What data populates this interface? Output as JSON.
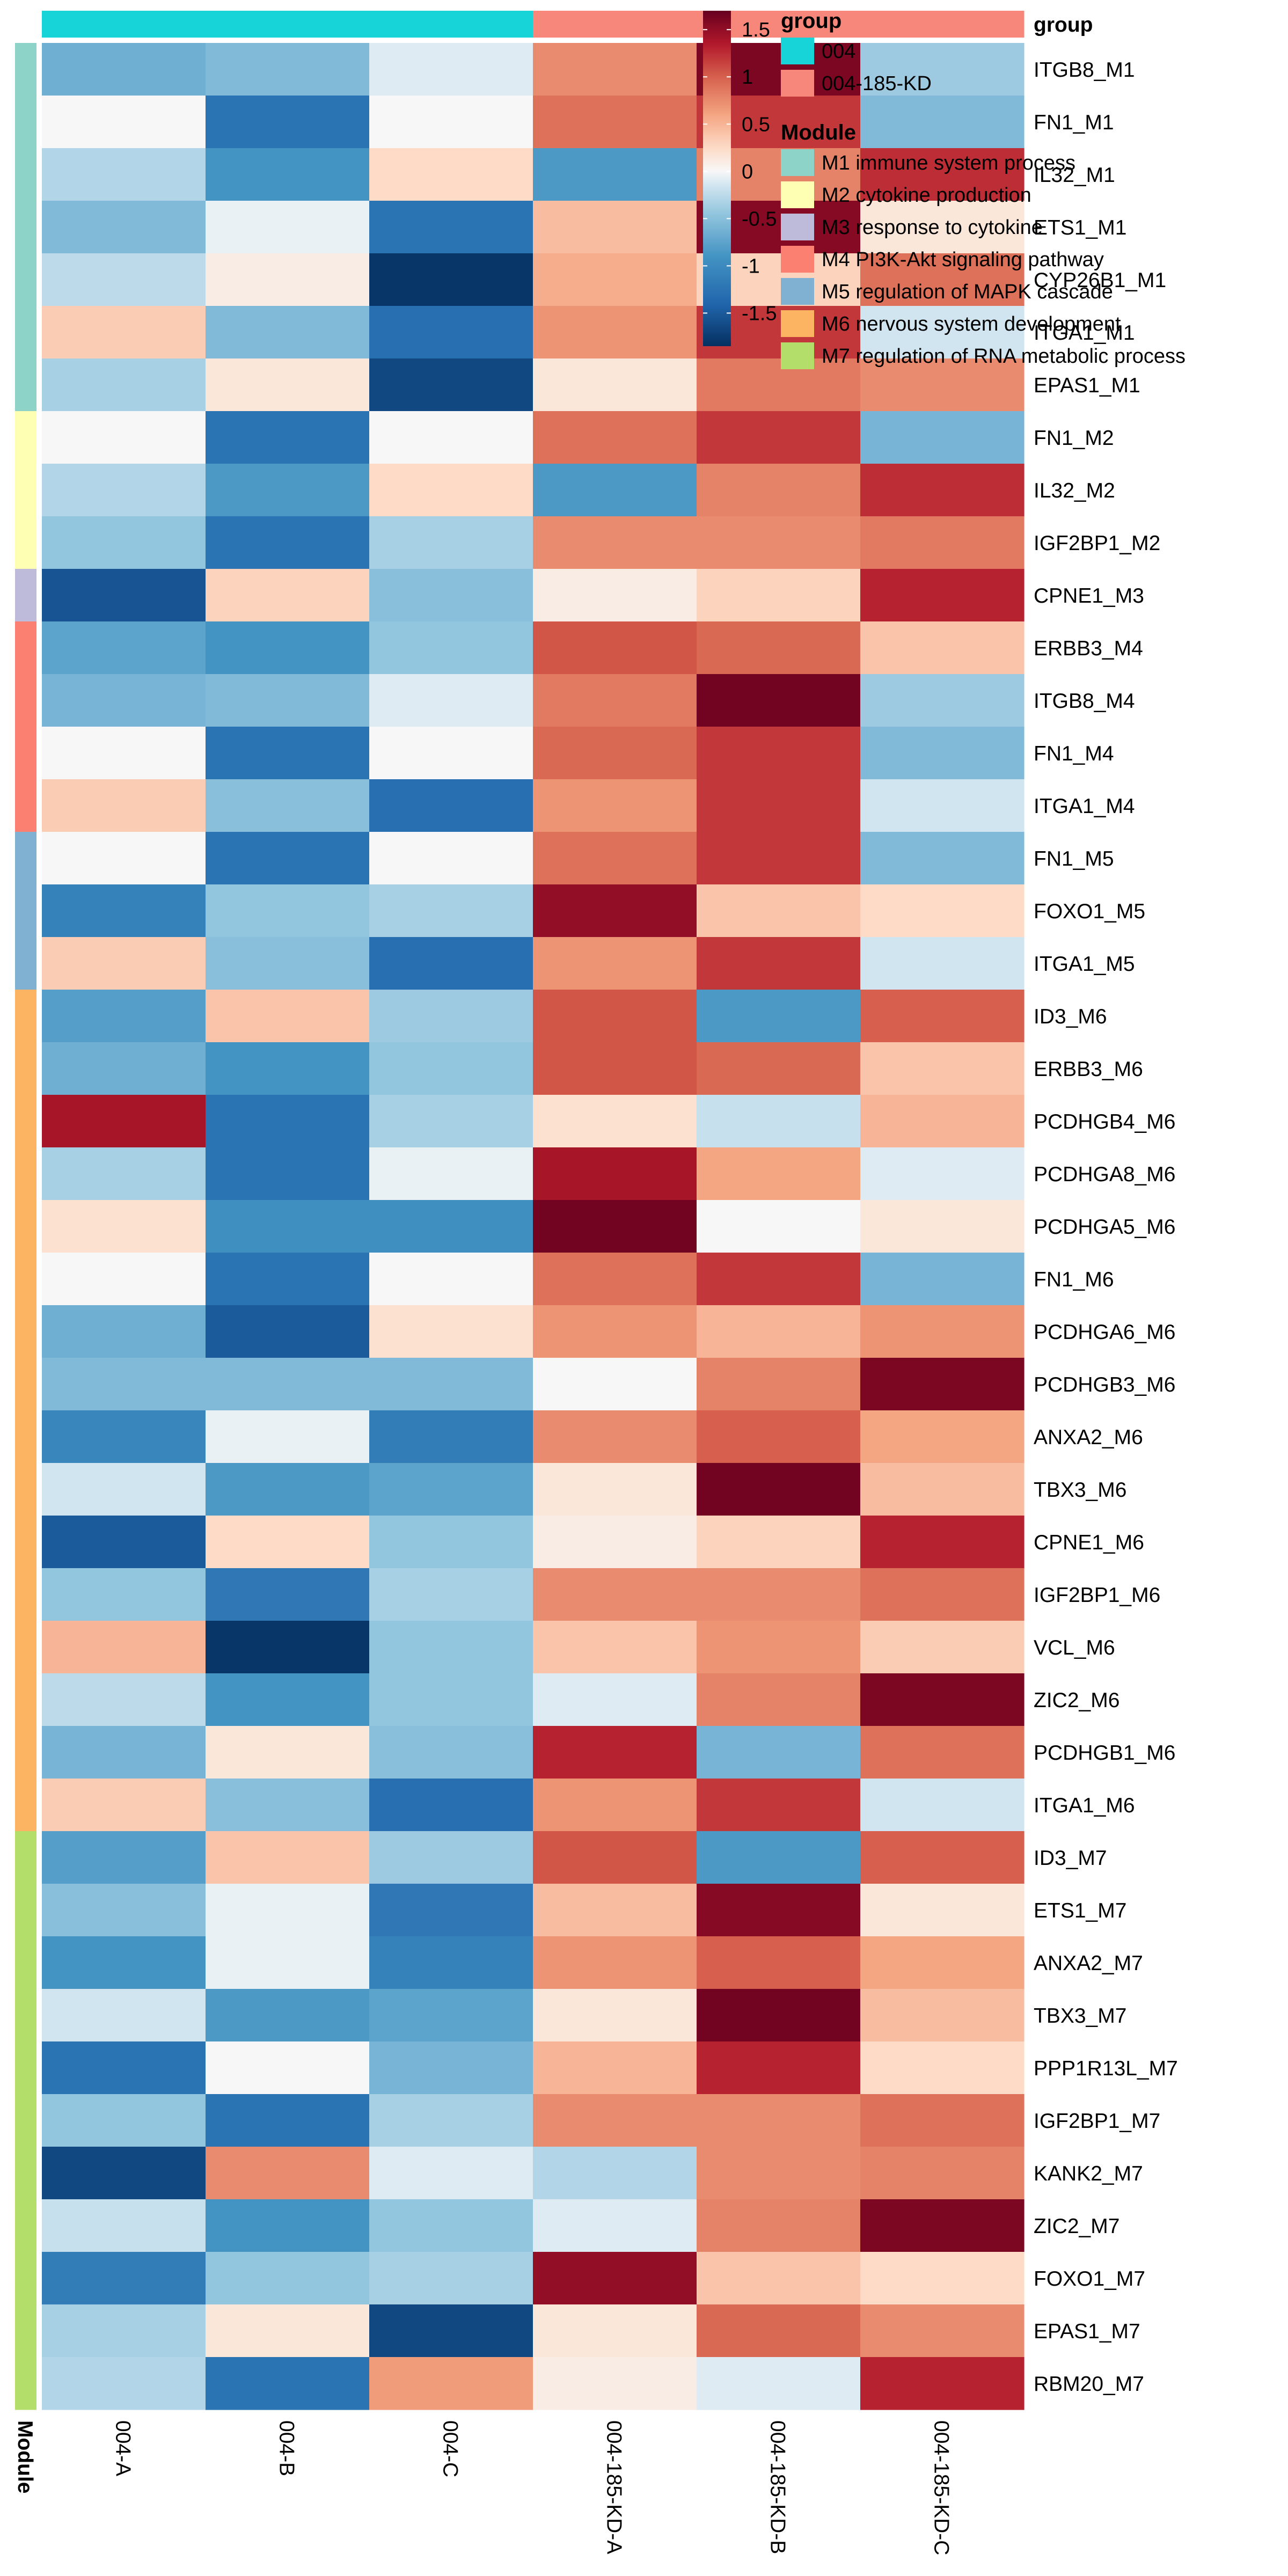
{
  "chart_data": {
    "type": "heatmap",
    "columns": [
      "004-A",
      "004-B",
      "004-C",
      "004-185-KD-A",
      "004-185-KD-B",
      "004-185-KD-C"
    ],
    "column_groups": [
      "004",
      "004",
      "004",
      "004-185-KD",
      "004-185-KD",
      "004-185-KD"
    ],
    "rows": [
      "ITGB8_M1",
      "FN1_M1",
      "IL32_M1",
      "ETS1_M1",
      "CYP26B1_M1",
      "ITGA1_M1",
      "EPAS1_M1",
      "FN1_M2",
      "IL32_M2",
      "IGF2BP1_M2",
      "CPNE1_M3",
      "ERBB3_M4",
      "ITGB8_M4",
      "FN1_M4",
      "ITGA1_M4",
      "FN1_M5",
      "FOXO1_M5",
      "ITGA1_M5",
      "ID3_M6",
      "ERBB3_M6",
      "PCDHGB4_M6",
      "PCDHGA8_M6",
      "PCDHGA5_M6",
      "FN1_M6",
      "PCDHGA6_M6",
      "PCDHGB3_M6",
      "ANXA2_M6",
      "TBX3_M6",
      "CPNE1_M6",
      "IGF2BP1_M6",
      "VCL_M6",
      "ZIC2_M6",
      "PCDHGB1_M6",
      "ITGA1_M6",
      "ID3_M7",
      "ETS1_M7",
      "ANXA2_M7",
      "TBX3_M7",
      "PPP1R13L_M7",
      "IGF2BP1_M7",
      "KANK2_M7",
      "ZIC2_M7",
      "FOXO1_M7",
      "EPAS1_M7",
      "RBM20_M7"
    ],
    "row_modules": [
      "M1",
      "M1",
      "M1",
      "M1",
      "M1",
      "M1",
      "M1",
      "M2",
      "M2",
      "M2",
      "M3",
      "M4",
      "M4",
      "M4",
      "M4",
      "M5",
      "M5",
      "M5",
      "M6",
      "M6",
      "M6",
      "M6",
      "M6",
      "M6",
      "M6",
      "M6",
      "M6",
      "M6",
      "M6",
      "M6",
      "M6",
      "M6",
      "M6",
      "M6",
      "M7",
      "M7",
      "M7",
      "M7",
      "M7",
      "M7",
      "M7",
      "M7",
      "M7",
      "M7",
      "M7"
    ],
    "values": [
      [
        -0.65,
        -0.55,
        -0.1,
        0.75,
        1.6,
        -0.4
      ],
      [
        0.0,
        -1.25,
        0.0,
        0.9,
        1.2,
        -0.55
      ],
      [
        -0.3,
        -0.9,
        0.25,
        -0.85,
        0.8,
        1.25
      ],
      [
        -0.55,
        -0.05,
        -1.25,
        0.45,
        1.55,
        0.15
      ],
      [
        -0.25,
        0.1,
        -1.8,
        0.55,
        0.3,
        0.9
      ],
      [
        0.35,
        -0.55,
        -1.3,
        0.7,
        1.2,
        -0.15
      ],
      [
        -0.35,
        0.15,
        -1.65,
        0.15,
        0.85,
        0.75
      ],
      [
        0.0,
        -1.25,
        0.0,
        0.9,
        1.2,
        -0.6
      ],
      [
        -0.3,
        -0.85,
        0.25,
        -0.85,
        0.8,
        1.25
      ],
      [
        -0.45,
        -1.25,
        -0.35,
        0.75,
        0.75,
        0.85
      ],
      [
        -1.55,
        0.3,
        -0.5,
        0.1,
        0.3,
        1.3
      ],
      [
        -0.75,
        -0.9,
        -0.45,
        1.05,
        0.95,
        0.4
      ],
      [
        -0.6,
        -0.55,
        -0.1,
        0.85,
        1.65,
        -0.4
      ],
      [
        0.0,
        -1.25,
        0.0,
        0.95,
        1.2,
        -0.55
      ],
      [
        0.35,
        -0.5,
        -1.3,
        0.7,
        1.2,
        -0.15
      ],
      [
        0.0,
        -1.25,
        0.0,
        0.9,
        1.2,
        -0.55
      ],
      [
        -1.1,
        -0.45,
        -0.35,
        1.5,
        0.4,
        0.25
      ],
      [
        0.35,
        -0.5,
        -1.3,
        0.7,
        1.2,
        -0.15
      ],
      [
        -0.8,
        0.4,
        -0.4,
        1.05,
        -0.85,
        1.0
      ],
      [
        -0.65,
        -0.9,
        -0.45,
        1.05,
        0.95,
        0.4
      ],
      [
        1.4,
        -1.25,
        -0.35,
        0.2,
        -0.2,
        0.5
      ],
      [
        -0.35,
        -1.25,
        -0.05,
        1.4,
        0.6,
        -0.1
      ],
      [
        0.2,
        -0.95,
        -0.95,
        1.65,
        0.0,
        0.15
      ],
      [
        0.0,
        -1.25,
        0.0,
        0.9,
        1.2,
        -0.6
      ],
      [
        -0.65,
        -1.5,
        0.2,
        0.7,
        0.5,
        0.7
      ],
      [
        -0.55,
        -0.55,
        -0.55,
        0.0,
        0.8,
        1.6
      ],
      [
        -1.05,
        -0.05,
        -1.15,
        0.75,
        1.0,
        0.6
      ],
      [
        -0.15,
        -0.85,
        -0.75,
        0.15,
        1.65,
        0.45
      ],
      [
        -1.5,
        0.25,
        -0.45,
        0.1,
        0.3,
        1.3
      ],
      [
        -0.45,
        -1.2,
        -0.35,
        0.75,
        0.75,
        0.9
      ],
      [
        0.5,
        -1.8,
        -0.45,
        0.4,
        0.7,
        0.35
      ],
      [
        -0.25,
        -0.9,
        -0.45,
        -0.1,
        0.8,
        1.6
      ],
      [
        -0.6,
        0.15,
        -0.5,
        1.3,
        -0.6,
        0.9
      ],
      [
        0.35,
        -0.5,
        -1.3,
        0.7,
        1.2,
        -0.15
      ],
      [
        -0.8,
        0.4,
        -0.4,
        1.05,
        -0.85,
        1.0
      ],
      [
        -0.5,
        -0.05,
        -1.2,
        0.45,
        1.55,
        0.15
      ],
      [
        -0.9,
        -0.05,
        -1.1,
        0.7,
        1.0,
        0.6
      ],
      [
        -0.15,
        -0.85,
        -0.75,
        0.15,
        1.65,
        0.45
      ],
      [
        -1.25,
        0.0,
        -0.6,
        0.5,
        1.3,
        0.25
      ],
      [
        -0.45,
        -1.25,
        -0.35,
        0.75,
        0.75,
        0.9
      ],
      [
        -1.65,
        0.75,
        -0.1,
        -0.3,
        0.75,
        0.8
      ],
      [
        -0.2,
        -0.9,
        -0.45,
        -0.1,
        0.8,
        1.6
      ],
      [
        -1.15,
        -0.45,
        -0.35,
        1.5,
        0.4,
        0.25
      ],
      [
        -0.35,
        0.15,
        -1.65,
        0.15,
        0.95,
        0.75
      ],
      [
        -0.3,
        -1.25,
        0.65,
        0.1,
        -0.1,
        1.3
      ]
    ],
    "color_scale": {
      "min": -1.85,
      "max": 1.7,
      "ticks": [
        1.5,
        1,
        0.5,
        0,
        -0.5,
        -1,
        -1.5
      ],
      "tick_labels": [
        "1.5",
        "1",
        "0.5",
        "0",
        "-0.5",
        "-1",
        "-1.5"
      ],
      "stops": [
        {
          "v": -1.85,
          "color": "#053061"
        },
        {
          "v": -1.4,
          "color": "#2166ac"
        },
        {
          "v": -0.9,
          "color": "#4393c3"
        },
        {
          "v": -0.45,
          "color": "#92c5de"
        },
        {
          "v": -0.15,
          "color": "#d1e5f0"
        },
        {
          "v": 0.0,
          "color": "#f7f7f7"
        },
        {
          "v": 0.25,
          "color": "#fddbc7"
        },
        {
          "v": 0.6,
          "color": "#f4a582"
        },
        {
          "v": 1.0,
          "color": "#d6604d"
        },
        {
          "v": 1.35,
          "color": "#b2182b"
        },
        {
          "v": 1.7,
          "color": "#67001f"
        }
      ]
    },
    "group_annotation": {
      "title": "group",
      "entries": [
        {
          "key": "004",
          "label": "004",
          "color": "#17d4d8"
        },
        {
          "key": "004-185-KD",
          "label": "004-185-KD",
          "color": "#f8877b"
        }
      ]
    },
    "module_annotation": {
      "title": "Module",
      "entries": [
        {
          "key": "M1",
          "label": "M1 immune system process",
          "color": "#8dd3c7"
        },
        {
          "key": "M2",
          "label": "M2 cytokine production",
          "color": "#ffffb3"
        },
        {
          "key": "M3",
          "label": "M3 response to cytokine",
          "color": "#bebada"
        },
        {
          "key": "M4",
          "label": "M4 PI3K-Akt signaling pathway",
          "color": "#fb8072"
        },
        {
          "key": "M5",
          "label": "M5 regulation of MAPK cascade",
          "color": "#80b1d3"
        },
        {
          "key": "M6",
          "label": "M6 nervous system development",
          "color": "#fdb462"
        },
        {
          "key": "M7",
          "label": "M7 regulation of RNA metabolic process",
          "color": "#b3de69"
        }
      ]
    },
    "legend_placement": "top-right"
  }
}
